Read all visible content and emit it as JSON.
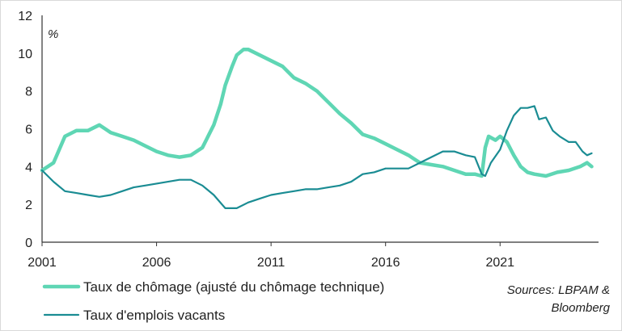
{
  "chart_data": {
    "type": "line",
    "ylabel": "%",
    "ylim": [
      0,
      12
    ],
    "yticks": [
      "0",
      "2",
      "4",
      "6",
      "8",
      "10",
      "12"
    ],
    "xlim": [
      2001.0,
      2025.3
    ],
    "xticks": [
      "2001",
      "2006",
      "2011",
      "2016",
      "2021"
    ],
    "grid": false,
    "legend_position": "bottom-left",
    "series": [
      {
        "name": "Taux de chômage (ajusté du chômage technique)",
        "color": "#5fd6b4",
        "x": [
          2001.0,
          2001.5,
          2002.0,
          2002.5,
          2003.0,
          2003.5,
          2004.0,
          2004.5,
          2005.0,
          2005.5,
          2006.0,
          2006.5,
          2007.0,
          2007.5,
          2008.0,
          2008.5,
          2008.8,
          2009.0,
          2009.3,
          2009.5,
          2009.8,
          2010.0,
          2010.5,
          2011.0,
          2011.5,
          2012.0,
          2012.5,
          2013.0,
          2013.5,
          2014.0,
          2014.5,
          2015.0,
          2015.5,
          2016.0,
          2016.5,
          2017.0,
          2017.5,
          2018.0,
          2018.5,
          2019.0,
          2019.5,
          2019.9,
          2020.2,
          2020.35,
          2020.5,
          2020.8,
          2021.0,
          2021.3,
          2021.6,
          2021.9,
          2022.2,
          2022.5,
          2023.0,
          2023.5,
          2024.0,
          2024.5,
          2024.8,
          2025.0
        ],
        "values": [
          3.8,
          4.2,
          5.6,
          5.9,
          5.9,
          6.2,
          5.8,
          5.6,
          5.4,
          5.1,
          4.8,
          4.6,
          4.5,
          4.6,
          5.0,
          6.2,
          7.3,
          8.3,
          9.3,
          9.9,
          10.2,
          10.2,
          9.9,
          9.6,
          9.3,
          8.7,
          8.4,
          8.0,
          7.4,
          6.8,
          6.3,
          5.7,
          5.5,
          5.2,
          4.9,
          4.6,
          4.2,
          4.1,
          4.0,
          3.8,
          3.6,
          3.6,
          3.5,
          5.0,
          5.6,
          5.4,
          5.6,
          5.3,
          4.6,
          4.0,
          3.7,
          3.6,
          3.5,
          3.7,
          3.8,
          4.0,
          4.2,
          4.0
        ]
      },
      {
        "name": "Taux d'emplois vacants",
        "color": "#1a8c93",
        "x": [
          2001.0,
          2001.5,
          2002.0,
          2002.5,
          2003.0,
          2003.5,
          2004.0,
          2004.5,
          2005.0,
          2005.5,
          2006.0,
          2006.5,
          2007.0,
          2007.5,
          2008.0,
          2008.5,
          2009.0,
          2009.5,
          2010.0,
          2010.5,
          2011.0,
          2011.5,
          2012.0,
          2012.5,
          2013.0,
          2013.5,
          2014.0,
          2014.5,
          2015.0,
          2015.5,
          2016.0,
          2016.5,
          2017.0,
          2017.5,
          2018.0,
          2018.5,
          2019.0,
          2019.5,
          2019.9,
          2020.2,
          2020.35,
          2020.6,
          2021.0,
          2021.3,
          2021.6,
          2021.9,
          2022.2,
          2022.5,
          2022.7,
          2023.0,
          2023.3,
          2023.6,
          2024.0,
          2024.3,
          2024.6,
          2024.8,
          2025.0
        ],
        "values": [
          3.8,
          3.2,
          2.7,
          2.6,
          2.5,
          2.4,
          2.5,
          2.7,
          2.9,
          3.0,
          3.1,
          3.2,
          3.3,
          3.3,
          3.0,
          2.5,
          1.8,
          1.8,
          2.1,
          2.3,
          2.5,
          2.6,
          2.7,
          2.8,
          2.8,
          2.9,
          3.0,
          3.2,
          3.6,
          3.7,
          3.9,
          3.9,
          3.9,
          4.2,
          4.5,
          4.8,
          4.8,
          4.6,
          4.5,
          3.6,
          3.5,
          4.2,
          4.9,
          5.9,
          6.7,
          7.1,
          7.1,
          7.2,
          6.5,
          6.6,
          5.9,
          5.6,
          5.3,
          5.3,
          4.8,
          4.6,
          4.7
        ]
      }
    ],
    "source": "Sources: LBPAM & Bloomberg",
    "source_lines": [
      "Sources: LBPAM &",
      "Bloomberg"
    ]
  }
}
